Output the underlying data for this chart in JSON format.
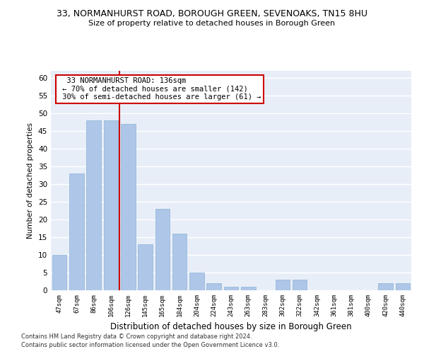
{
  "title": "33, NORMANHURST ROAD, BOROUGH GREEN, SEVENOAKS, TN15 8HU",
  "subtitle": "Size of property relative to detached houses in Borough Green",
  "xlabel": "Distribution of detached houses by size in Borough Green",
  "ylabel": "Number of detached properties",
  "bar_color": "#aec6e8",
  "bar_edgecolor": "#8ab4d8",
  "background_color": "#e8eef8",
  "grid_color": "#ffffff",
  "categories": [
    "47sqm",
    "67sqm",
    "86sqm",
    "106sqm",
    "126sqm",
    "145sqm",
    "165sqm",
    "184sqm",
    "204sqm",
    "224sqm",
    "243sqm",
    "263sqm",
    "283sqm",
    "302sqm",
    "322sqm",
    "342sqm",
    "361sqm",
    "381sqm",
    "400sqm",
    "420sqm",
    "440sqm"
  ],
  "values": [
    10,
    33,
    48,
    48,
    47,
    13,
    23,
    16,
    5,
    2,
    1,
    1,
    0,
    3,
    3,
    0,
    0,
    0,
    0,
    2,
    2
  ],
  "ylim": [
    0,
    62
  ],
  "yticks": [
    0,
    5,
    10,
    15,
    20,
    25,
    30,
    35,
    40,
    45,
    50,
    55,
    60
  ],
  "vline_index": 3.5,
  "annotation_text": "  33 NORMANHURST ROAD: 136sqm  \n ← 70% of detached houses are smaller (142)\n 30% of semi-detached houses are larger (61) →",
  "annotation_box_color": "#ffffff",
  "annotation_border_color": "#cc0000",
  "vline_color": "#cc0000",
  "footer_line1": "Contains HM Land Registry data © Crown copyright and database right 2024.",
  "footer_line2": "Contains public sector information licensed under the Open Government Licence v3.0."
}
